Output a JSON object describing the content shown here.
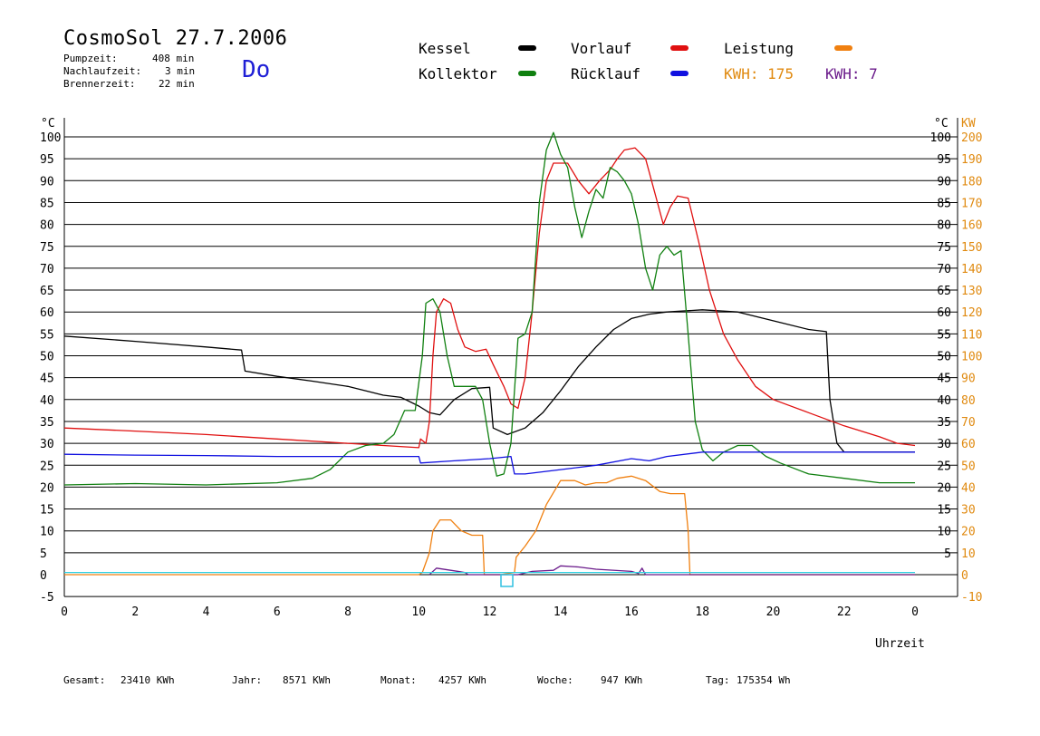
{
  "header": {
    "title": "CosmoSol 27.7.2006",
    "stats": [
      {
        "label": "Pumpzeit:",
        "value": "408 min"
      },
      {
        "label": "Nachlaufzeit:",
        "value": "3 min"
      },
      {
        "label": "Brennerzeit:",
        "value": "22 min"
      }
    ],
    "day": "Do"
  },
  "legend": {
    "items": [
      {
        "label": "Kessel",
        "color": "#000000"
      },
      {
        "label": "Vorlauf",
        "color": "#e01010"
      },
      {
        "label": "Leistung",
        "color": "#f08010"
      },
      {
        "label": "Kollektor",
        "color": "#108010"
      },
      {
        "label": "Rücklauf",
        "color": "#1010e0"
      }
    ],
    "kwh_orange": "KWH: 175",
    "kwh_purple": "KWH: 7",
    "kwh_orange_color": "#e08a10",
    "kwh_purple_color": "#6a1a8a"
  },
  "footer": {
    "gesamt_label": "Gesamt:",
    "gesamt_value": "23410 KWh",
    "jahr_label": "Jahr:",
    "jahr_value": "8571 KWh",
    "monat_label": "Monat:",
    "monat_value": "4257 KWh",
    "woche_label": "Woche:",
    "woche_value": "947 KWh",
    "tag_label": "Tag:",
    "tag_value": "175354 Wh"
  },
  "chart_data": {
    "type": "line",
    "xlabel": "Uhrzeit",
    "ylabel_left": "°C",
    "ylabel_right_temp": "°C",
    "ylabel_right_power": "KW",
    "xlim": [
      0,
      24
    ],
    "ylim": [
      -5,
      100
    ],
    "x_ticks": [
      "0",
      "2",
      "4",
      "6",
      "8",
      "10",
      "12",
      "14",
      "16",
      "18",
      "20",
      "22",
      "0"
    ],
    "y_ticks_left": [
      "-5",
      "0",
      "5",
      "10",
      "15",
      "20",
      "25",
      "30",
      "35",
      "40",
      "45",
      "50",
      "55",
      "60",
      "65",
      "70",
      "75",
      "80",
      "85",
      "90",
      "95",
      "100"
    ],
    "y_ticks_right_temp": [
      "5",
      "10",
      "15",
      "20",
      "25",
      "30",
      "35",
      "40",
      "45",
      "50",
      "55",
      "60",
      "65",
      "70",
      "75",
      "80",
      "85",
      "90",
      "95",
      "100"
    ],
    "y_ticks_right_power": [
      "-10",
      "0",
      "10",
      "20",
      "30",
      "40",
      "50",
      "60",
      "70",
      "80",
      "90",
      "100",
      "110",
      "120",
      "130",
      "140",
      "150",
      "160",
      "170",
      "180",
      "190",
      "200"
    ],
    "grid": "horizontal",
    "series": [
      {
        "name": "Kessel",
        "color": "#000000",
        "axis": "temp",
        "points": [
          [
            0,
            54.5
          ],
          [
            2,
            53.3
          ],
          [
            4,
            52
          ],
          [
            5,
            51.3
          ],
          [
            5.1,
            46.5
          ],
          [
            6,
            45.3
          ],
          [
            7,
            44.2
          ],
          [
            8,
            43
          ],
          [
            9,
            41
          ],
          [
            9.5,
            40.5
          ],
          [
            10,
            38.5
          ],
          [
            10.3,
            37
          ],
          [
            10.6,
            36.5
          ],
          [
            11,
            40
          ],
          [
            11.5,
            42.5
          ],
          [
            12,
            42.8
          ],
          [
            12.1,
            33.5
          ],
          [
            12.5,
            32
          ],
          [
            13,
            33.5
          ],
          [
            13.5,
            37
          ],
          [
            14,
            42
          ],
          [
            14.5,
            47.5
          ],
          [
            15,
            52
          ],
          [
            15.5,
            56
          ],
          [
            16,
            58.5
          ],
          [
            16.5,
            59.5
          ],
          [
            17,
            60
          ],
          [
            18,
            60.5
          ],
          [
            19,
            60
          ],
          [
            20,
            58
          ],
          [
            21,
            56
          ],
          [
            21.5,
            55.5
          ],
          [
            21.6,
            40
          ],
          [
            21.8,
            30
          ],
          [
            22,
            28
          ],
          [
            23,
            28
          ],
          [
            24,
            28
          ]
        ]
      },
      {
        "name": "Vorlauf",
        "color": "#e01010",
        "axis": "temp",
        "points": [
          [
            0,
            33.5
          ],
          [
            2,
            32.8
          ],
          [
            4,
            32
          ],
          [
            6,
            31
          ],
          [
            8,
            30
          ],
          [
            9,
            29.5
          ],
          [
            10,
            29
          ],
          [
            10.05,
            31
          ],
          [
            10.2,
            30
          ],
          [
            10.3,
            35
          ],
          [
            10.4,
            50
          ],
          [
            10.5,
            60
          ],
          [
            10.7,
            63
          ],
          [
            10.9,
            62
          ],
          [
            11.1,
            56
          ],
          [
            11.3,
            52
          ],
          [
            11.6,
            51
          ],
          [
            11.9,
            51.5
          ],
          [
            12.1,
            48
          ],
          [
            12.4,
            43
          ],
          [
            12.6,
            39
          ],
          [
            12.8,
            38
          ],
          [
            13,
            45
          ],
          [
            13.2,
            60
          ],
          [
            13.4,
            78
          ],
          [
            13.6,
            90
          ],
          [
            13.8,
            94
          ],
          [
            14.2,
            94
          ],
          [
            14.5,
            90
          ],
          [
            14.8,
            87
          ],
          [
            15.1,
            90
          ],
          [
            15.4,
            92.5
          ],
          [
            15.6,
            95
          ],
          [
            15.8,
            97
          ],
          [
            16.1,
            97.5
          ],
          [
            16.4,
            95
          ],
          [
            16.7,
            86
          ],
          [
            16.9,
            80
          ],
          [
            17.1,
            84
          ],
          [
            17.3,
            86.5
          ],
          [
            17.6,
            86
          ],
          [
            17.9,
            76
          ],
          [
            18.2,
            65
          ],
          [
            18.6,
            55
          ],
          [
            19,
            49
          ],
          [
            19.5,
            43
          ],
          [
            20,
            40
          ],
          [
            21,
            37
          ],
          [
            22,
            34
          ],
          [
            23,
            31.5
          ],
          [
            23.5,
            30
          ],
          [
            24,
            29.5
          ]
        ]
      },
      {
        "name": "Kollektor",
        "color": "#108010",
        "axis": "temp",
        "points": [
          [
            0,
            20.5
          ],
          [
            2,
            20.8
          ],
          [
            4,
            20.5
          ],
          [
            6,
            21
          ],
          [
            7,
            22
          ],
          [
            7.5,
            24
          ],
          [
            8,
            28
          ],
          [
            8.5,
            29.5
          ],
          [
            9,
            30
          ],
          [
            9.3,
            32
          ],
          [
            9.6,
            37.5
          ],
          [
            9.9,
            37.5
          ],
          [
            10.1,
            50
          ],
          [
            10.2,
            62
          ],
          [
            10.4,
            63
          ],
          [
            10.6,
            60
          ],
          [
            10.8,
            50
          ],
          [
            11,
            43
          ],
          [
            11.3,
            43
          ],
          [
            11.6,
            43
          ],
          [
            11.8,
            40
          ],
          [
            12,
            30
          ],
          [
            12.2,
            22.5
          ],
          [
            12.4,
            23
          ],
          [
            12.6,
            30
          ],
          [
            12.8,
            54
          ],
          [
            13,
            55
          ],
          [
            13.2,
            60
          ],
          [
            13.4,
            85
          ],
          [
            13.6,
            97
          ],
          [
            13.8,
            101
          ],
          [
            14,
            96
          ],
          [
            14.2,
            93
          ],
          [
            14.4,
            84
          ],
          [
            14.6,
            77
          ],
          [
            14.8,
            83
          ],
          [
            15,
            88
          ],
          [
            15.2,
            86
          ],
          [
            15.4,
            93
          ],
          [
            15.6,
            92
          ],
          [
            15.8,
            90
          ],
          [
            16,
            87
          ],
          [
            16.2,
            80
          ],
          [
            16.4,
            70
          ],
          [
            16.6,
            65
          ],
          [
            16.8,
            73
          ],
          [
            17,
            75
          ],
          [
            17.2,
            73
          ],
          [
            17.4,
            74
          ],
          [
            17.6,
            55
          ],
          [
            17.8,
            35
          ],
          [
            18,
            28.5
          ],
          [
            18.3,
            26
          ],
          [
            18.6,
            28
          ],
          [
            19,
            29.5
          ],
          [
            19.4,
            29.5
          ],
          [
            19.8,
            27
          ],
          [
            20.2,
            25.5
          ],
          [
            21,
            23
          ],
          [
            22,
            22
          ],
          [
            23,
            21
          ],
          [
            24,
            21
          ]
        ]
      },
      {
        "name": "Rücklauf",
        "color": "#1010e0",
        "axis": "temp",
        "points": [
          [
            0,
            27.5
          ],
          [
            2,
            27.3
          ],
          [
            4,
            27.2
          ],
          [
            6,
            27
          ],
          [
            8,
            27
          ],
          [
            10,
            27
          ],
          [
            10.05,
            25.5
          ],
          [
            11,
            26
          ],
          [
            12,
            26.5
          ],
          [
            12.6,
            27
          ],
          [
            12.7,
            23
          ],
          [
            13,
            23
          ],
          [
            14,
            24
          ],
          [
            15,
            25
          ],
          [
            16,
            26.5
          ],
          [
            16.5,
            26
          ],
          [
            17,
            27
          ],
          [
            18,
            28
          ],
          [
            19,
            28
          ],
          [
            20,
            28
          ],
          [
            22,
            28
          ],
          [
            24,
            28
          ]
        ]
      },
      {
        "name": "Leistung",
        "color": "#f08010",
        "axis": "power",
        "points": [
          [
            0,
            0
          ],
          [
            10,
            0
          ],
          [
            10.1,
            1
          ],
          [
            10.3,
            10
          ],
          [
            10.4,
            20
          ],
          [
            10.6,
            25
          ],
          [
            10.9,
            25
          ],
          [
            11.2,
            20
          ],
          [
            11.5,
            18
          ],
          [
            11.8,
            18
          ],
          [
            11.85,
            0
          ],
          [
            12.3,
            0
          ],
          [
            12.7,
            1
          ],
          [
            12.75,
            8
          ],
          [
            13,
            13
          ],
          [
            13.3,
            20
          ],
          [
            13.6,
            32
          ],
          [
            14,
            43
          ],
          [
            14.4,
            43
          ],
          [
            14.7,
            41
          ],
          [
            15,
            42
          ],
          [
            15.3,
            42
          ],
          [
            15.6,
            44
          ],
          [
            16,
            45
          ],
          [
            16.4,
            43
          ],
          [
            16.8,
            38
          ],
          [
            17.1,
            37
          ],
          [
            17.5,
            37
          ],
          [
            17.6,
            20
          ],
          [
            17.65,
            0
          ],
          [
            24,
            0
          ]
        ]
      },
      {
        "name": "Solar",
        "color": "#6a1a8a",
        "axis": "power",
        "points": [
          [
            10.3,
            0
          ],
          [
            10.5,
            3
          ],
          [
            10.9,
            2
          ],
          [
            11.3,
            1
          ],
          [
            11.4,
            0
          ],
          [
            12.8,
            0
          ],
          [
            13.2,
            1.5
          ],
          [
            13.8,
            2
          ],
          [
            14,
            4
          ],
          [
            14.5,
            3.5
          ],
          [
            15,
            2.5
          ],
          [
            16,
            1.5
          ],
          [
            16.2,
            0.5
          ],
          [
            16.3,
            3
          ],
          [
            16.4,
            0
          ],
          [
            24,
            0
          ]
        ]
      },
      {
        "name": "Null",
        "color": "#30d0e0",
        "axis": "temp",
        "points": [
          [
            0,
            0.5
          ],
          [
            24,
            0.5
          ]
        ]
      }
    ]
  }
}
